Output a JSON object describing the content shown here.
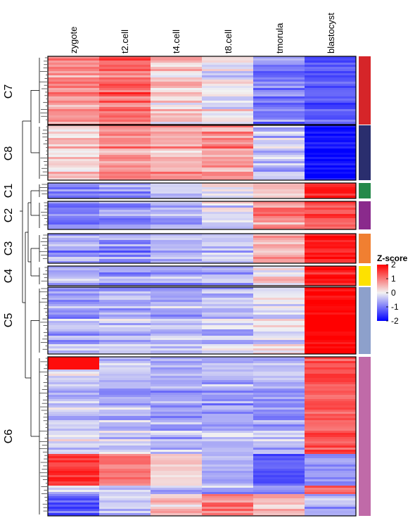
{
  "chart_data": {
    "type": "heatmap",
    "columns": [
      "zygote",
      "t2.cell",
      "t4.cell",
      "t8.cell",
      "tmorula",
      "blastocyst"
    ],
    "legend": {
      "title": "Z-score",
      "ticks": [
        2,
        1,
        0,
        -1,
        -2
      ],
      "range": [
        -2,
        2
      ]
    },
    "colors": {
      "low": "#0000ff",
      "mid": "#f2f2f2",
      "high": "#ff0000"
    },
    "clusters": [
      {
        "name": "C7",
        "color": "#d62529",
        "mean_z": [
          0.8,
          1.15,
          0.3,
          -0.05,
          -0.95,
          -1.3
        ]
      },
      {
        "name": "C8",
        "color": "#2a2e6e",
        "mean_z": [
          0.25,
          0.85,
          0.6,
          0.75,
          -0.35,
          -1.9
        ]
      },
      {
        "name": "C1",
        "color": "#24894a",
        "mean_z": [
          -0.95,
          -0.75,
          -0.3,
          -0.15,
          0.4,
          1.75
        ]
      },
      {
        "name": "C2",
        "color": "#8a2a8c",
        "mean_z": [
          -1.05,
          -0.9,
          -0.65,
          -0.2,
          0.8,
          1.3
        ]
      },
      {
        "name": "C3",
        "color": "#f07f31",
        "mean_z": [
          -0.75,
          -0.85,
          -0.7,
          -0.45,
          0.45,
          1.75
        ]
      },
      {
        "name": "C4",
        "color": "#fde100",
        "mean_z": [
          -0.5,
          -0.55,
          -0.5,
          -0.4,
          0.2,
          1.85
        ]
      },
      {
        "name": "C5",
        "color": "#8da0cb",
        "mean_z": [
          -0.5,
          -0.4,
          -0.45,
          -0.35,
          0.0,
          2.0
        ]
      },
      {
        "name": "C6",
        "color": "#c06aa8",
        "mean_z": [
          -0.2,
          -0.35,
          -0.55,
          -0.5,
          -0.6,
          1.3
        ]
      }
    ]
  }
}
